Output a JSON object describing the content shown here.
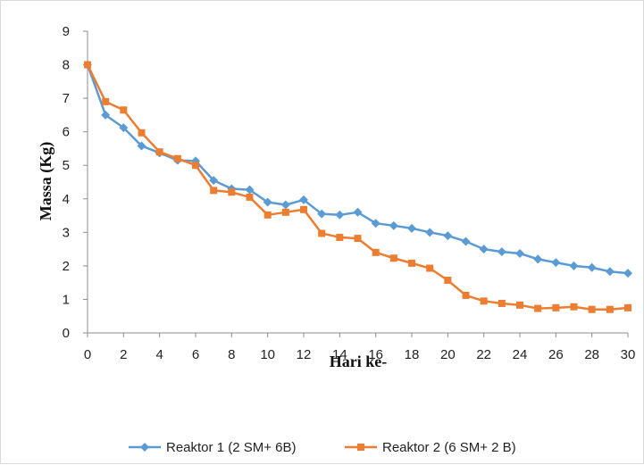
{
  "chart_data": {
    "type": "line",
    "title": "",
    "xlabel": "Hari ke-",
    "ylabel": "Massa (Kg)",
    "xlim": [
      0,
      30
    ],
    "ylim": [
      0,
      9
    ],
    "x_ticks": [
      0,
      2,
      4,
      6,
      8,
      10,
      12,
      14,
      16,
      18,
      20,
      22,
      24,
      26,
      28,
      30
    ],
    "y_ticks": [
      0,
      1,
      2,
      3,
      4,
      5,
      6,
      7,
      8,
      9
    ],
    "grid": false,
    "legend_position": "bottom",
    "x": [
      0,
      1,
      2,
      3,
      4,
      5,
      6,
      7,
      8,
      9,
      10,
      11,
      12,
      13,
      14,
      15,
      16,
      17,
      18,
      19,
      20,
      21,
      22,
      23,
      24,
      25,
      26,
      27,
      28,
      29,
      30
    ],
    "series": [
      {
        "name": "Reaktor 1 (2 SM+ 6B)",
        "color": "#5b9bd5",
        "marker": "diamond",
        "values": [
          8.0,
          6.5,
          6.12,
          5.58,
          5.37,
          5.15,
          5.13,
          4.55,
          4.3,
          4.27,
          3.9,
          3.82,
          3.97,
          3.55,
          3.52,
          3.6,
          3.27,
          3.2,
          3.12,
          3.0,
          2.9,
          2.73,
          2.5,
          2.42,
          2.37,
          2.2,
          2.1,
          2.0,
          1.95,
          1.83,
          1.78
        ]
      },
      {
        "name": "Reaktor 2 (6 SM+ 2 B)",
        "color": "#ed7d31",
        "marker": "square",
        "values": [
          8.0,
          6.9,
          6.65,
          5.97,
          5.4,
          5.2,
          5.0,
          4.25,
          4.2,
          4.05,
          3.52,
          3.6,
          3.68,
          2.97,
          2.85,
          2.82,
          2.4,
          2.23,
          2.08,
          1.93,
          1.57,
          1.12,
          0.95,
          0.88,
          0.83,
          0.73,
          0.75,
          0.78,
          0.7,
          0.7,
          0.75
        ]
      }
    ]
  }
}
